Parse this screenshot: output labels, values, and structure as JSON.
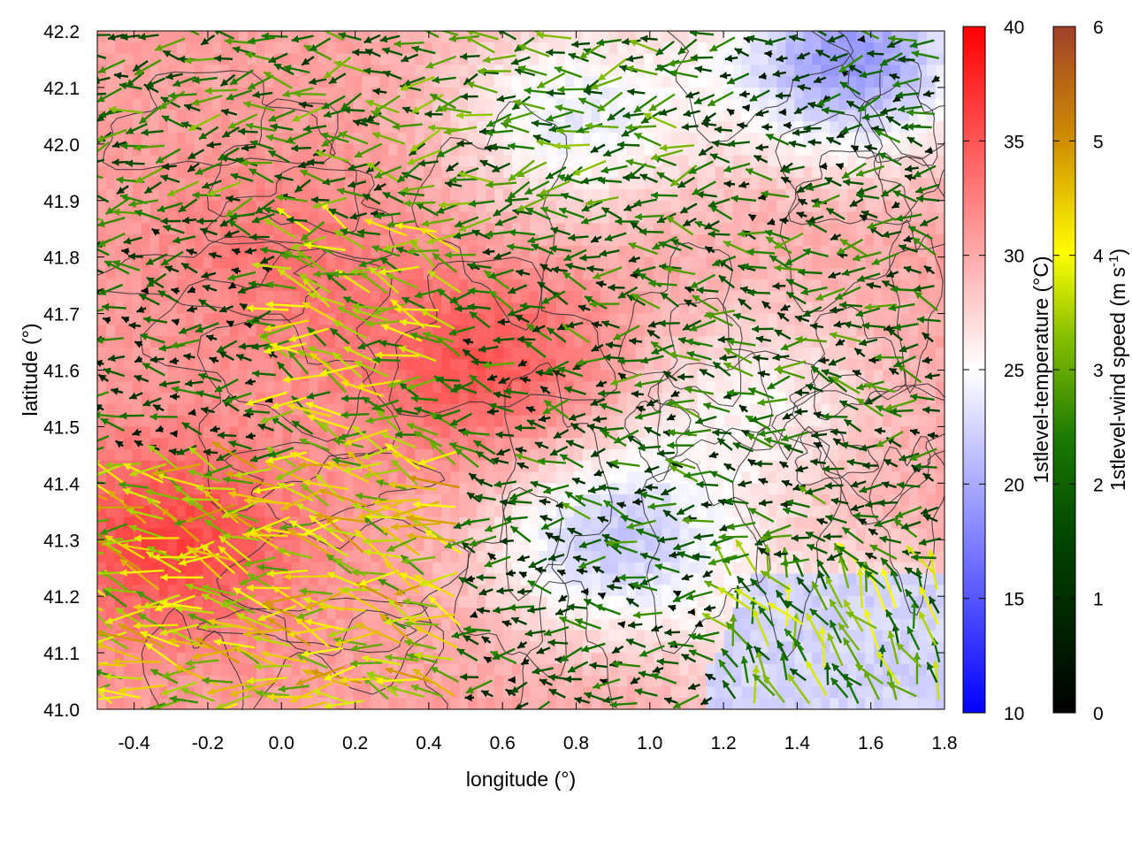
{
  "chart_data": {
    "type": "heatmap",
    "description_type": "2D map: temperature color field with wind vector arrows and contour lines",
    "x_label": "longitude (°)",
    "y_label": "latitude (°)",
    "x_range": [
      -0.5,
      1.8
    ],
    "y_range": [
      41.0,
      42.2
    ],
    "x_ticks": [
      "-0.4",
      "-0.2",
      "0.0",
      "0.2",
      "0.4",
      "0.6",
      "0.8",
      "1.0",
      "1.2",
      "1.4",
      "1.6",
      "1.8"
    ],
    "x_tick_values": [
      -0.4,
      -0.2,
      0.0,
      0.2,
      0.4,
      0.6,
      0.8,
      1.0,
      1.2,
      1.4,
      1.6,
      1.8
    ],
    "y_ticks": [
      "41.0",
      "41.1",
      "41.2",
      "41.3",
      "41.4",
      "41.5",
      "41.6",
      "41.7",
      "41.8",
      "41.9",
      "42.0",
      "42.1",
      "42.2"
    ],
    "y_tick_values": [
      41.0,
      41.1,
      41.2,
      41.3,
      41.4,
      41.5,
      41.6,
      41.7,
      41.8,
      41.9,
      42.0,
      42.1,
      42.2
    ],
    "temperature_colorbar": {
      "label": "1stlevel-temperature (°C)",
      "range": [
        10,
        40
      ],
      "ticks": [
        "10",
        "15",
        "20",
        "25",
        "30",
        "35",
        "40"
      ],
      "tick_values": [
        10,
        15,
        20,
        25,
        30,
        35,
        40
      ],
      "colors": [
        "#0000ff",
        "#ffffff",
        "#ff0000"
      ]
    },
    "wind_colorbar": {
      "label": "1stlevel-wind speed (m s-1)",
      "label_main": "1stlevel-wind speed (m s",
      "label_sup": "-1",
      "label_end": ")",
      "range": [
        0,
        6
      ],
      "ticks": [
        "0",
        "1",
        "2",
        "3",
        "4",
        "5",
        "6"
      ],
      "tick_values": [
        0,
        1,
        2,
        3,
        4,
        5,
        6
      ],
      "colors": [
        "#000000",
        "#006400",
        "#66b200",
        "#ffff00",
        "#d2a000",
        "#a0522d"
      ]
    },
    "temperature_hotspots": [
      {
        "lon": -0.3,
        "lat": 41.3,
        "temp": 36
      },
      {
        "lon": 0.55,
        "lat": 41.6,
        "temp": 35
      },
      {
        "lon": 0.0,
        "lat": 41.8,
        "temp": 33
      },
      {
        "lon": 1.55,
        "lat": 42.15,
        "temp": 19
      },
      {
        "lon": 0.9,
        "lat": 41.3,
        "temp": 22
      },
      {
        "lon": 1.55,
        "lat": 41.08,
        "temp": 23
      },
      {
        "lon": 0.8,
        "lat": 42.05,
        "temp": 24
      },
      {
        "lon": 1.3,
        "lat": 41.55,
        "temp": 26
      }
    ],
    "wind_regimes": [
      {
        "lon_range": [
          -0.5,
          0.5
        ],
        "lat_range": [
          41.0,
          41.45
        ],
        "dir_deg_from_east": 170,
        "speed": 3.8
      },
      {
        "lon_range": [
          0.0,
          0.9
        ],
        "lat_range": [
          41.45,
          41.85
        ],
        "dir_deg_from_east": 165,
        "speed": 3.2
      },
      {
        "lon_range": [
          -0.5,
          1.2
        ],
        "lat_range": [
          41.85,
          42.2
        ],
        "dir_deg_from_east": 185,
        "speed": 2.2
      },
      {
        "lon_range": [
          1.2,
          1.8
        ],
        "lat_range": [
          41.0,
          41.25
        ],
        "dir_deg_from_east": 120,
        "speed": 2.8
      },
      {
        "lon_range": [
          0.5,
          1.8
        ],
        "lat_range": [
          41.25,
          41.85
        ],
        "dir_deg_from_east": 175,
        "speed": 1.8
      }
    ]
  }
}
